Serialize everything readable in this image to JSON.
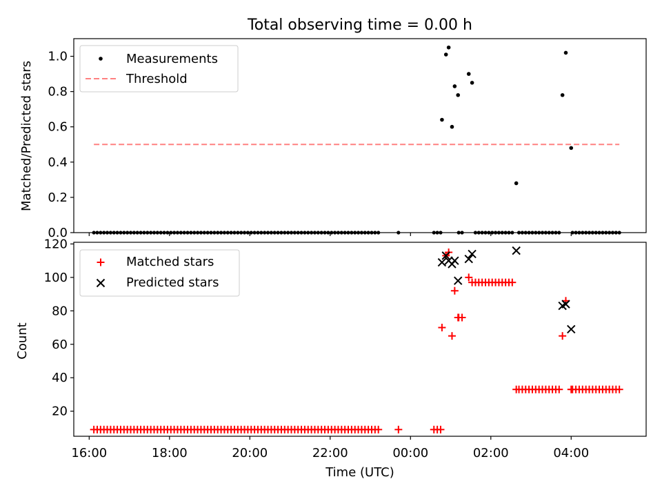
{
  "chart_data": [
    {
      "type": "scatter",
      "title": "Total observing time = 0.00 h",
      "ylabel": "Matched/Predicted stars",
      "xlabel": "",
      "ylim": [
        0,
        1.1
      ],
      "xlim": [
        "15:37",
        "05:52"
      ],
      "yticks": [
        "0.0",
        "0.2",
        "0.4",
        "0.6",
        "0.8",
        "1.0"
      ],
      "legend_position": "top-left",
      "grid": false,
      "series": [
        {
          "name": "Measurements",
          "marker": "dot",
          "color": "#000000",
          "points": [
            [
              "00:47",
              0.64
            ],
            [
              "00:53",
              1.01
            ],
            [
              "00:57",
              1.05
            ],
            [
              "01:02",
              0.6
            ],
            [
              "01:06",
              0.83
            ],
            [
              "01:11",
              0.78
            ],
            [
              "01:27",
              0.9
            ],
            [
              "01:32",
              0.85
            ],
            [
              "02:38",
              0.28
            ],
            [
              "03:47",
              0.78
            ],
            [
              "03:52",
              1.02
            ],
            [
              "04:00",
              0.48
            ]
          ],
          "zero_runs": [
            [
              "16:07",
              "23:12",
              5
            ],
            [
              "23:42",
              "23:42",
              5
            ],
            [
              "00:35",
              "00:45",
              5
            ],
            [
              "01:12",
              "01:19",
              5
            ],
            [
              "01:37",
              "02:32",
              5
            ],
            [
              "02:42",
              "03:42",
              5
            ],
            [
              "04:02",
              "05:12",
              5
            ]
          ]
        },
        {
          "name": "Threshold",
          "style": "dashed",
          "color": "#ff8080",
          "x": [
            "16:07",
            "05:12"
          ],
          "values": [
            0.5,
            0.5
          ]
        }
      ]
    },
    {
      "type": "scatter",
      "title": "",
      "ylabel": "Count",
      "xlabel": "Time (UTC)",
      "ylim": [
        5,
        121
      ],
      "xlim": [
        "15:37",
        "05:52"
      ],
      "yticks": [
        "20",
        "40",
        "60",
        "80",
        "100",
        "120"
      ],
      "xticks": [
        "16:00",
        "18:00",
        "20:00",
        "22:00",
        "00:00",
        "02:00",
        "04:00"
      ],
      "legend_position": "top-left",
      "grid": false,
      "series": [
        {
          "name": "Matched stars",
          "marker": "plus",
          "color": "#ff0000",
          "points": [
            [
              "00:47",
              70
            ],
            [
              "00:53",
              113
            ],
            [
              "00:57",
              115
            ],
            [
              "01:02",
              65
            ],
            [
              "01:06",
              92
            ],
            [
              "01:11",
              76
            ],
            [
              "01:27",
              100
            ],
            [
              "01:32",
              97
            ],
            [
              "02:38",
              33
            ],
            [
              "03:47",
              65
            ],
            [
              "03:52",
              86
            ],
            [
              "04:00",
              33
            ]
          ],
          "runs": [
            [
              "16:07",
              "23:12",
              5,
              9
            ],
            [
              "23:42",
              "23:42",
              5,
              9
            ],
            [
              "00:35",
              "00:45",
              5,
              9
            ],
            [
              "01:12",
              "01:19",
              5,
              76
            ],
            [
              "01:37",
              "02:32",
              5,
              97
            ],
            [
              "02:42",
              "03:42",
              5,
              33
            ],
            [
              "04:02",
              "05:12",
              5,
              33
            ]
          ]
        },
        {
          "name": "Predicted stars",
          "marker": "x",
          "color": "#000000",
          "points": [
            [
              "00:47",
              109
            ],
            [
              "00:53",
              113
            ],
            [
              "00:57",
              110
            ],
            [
              "01:02",
              108
            ],
            [
              "01:06",
              110
            ],
            [
              "01:11",
              98
            ],
            [
              "01:27",
              111
            ],
            [
              "01:32",
              114
            ],
            [
              "02:38",
              116
            ],
            [
              "03:47",
              83
            ],
            [
              "03:52",
              84
            ],
            [
              "04:00",
              69
            ]
          ]
        }
      ]
    }
  ]
}
